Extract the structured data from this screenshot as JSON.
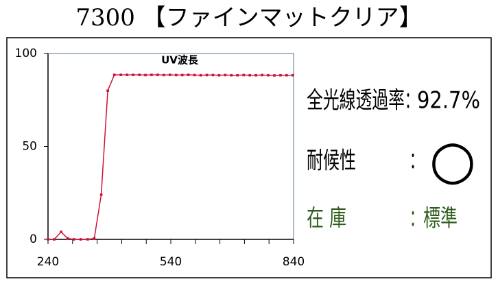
{
  "title": "7300 【ファインマットクリア】",
  "chart_data": {
    "type": "line",
    "title": "UV波長",
    "x": [
      240,
      255,
      272,
      288,
      303,
      320,
      337,
      353,
      370,
      386,
      402,
      418,
      433,
      448,
      463,
      478,
      493,
      508,
      523,
      538,
      553,
      568,
      583,
      598,
      613,
      628,
      643,
      658,
      673,
      688,
      703,
      718,
      733,
      748,
      763,
      778,
      793,
      808,
      823,
      838
    ],
    "series": [
      {
        "name": "UV波長",
        "color": "#d0103a",
        "values": [
          0,
          0,
          4,
          0.5,
          0,
          0,
          0,
          0.5,
          24,
          80,
          88.5,
          88.5,
          88.5,
          88.5,
          88.5,
          88.4,
          88.5,
          88.5,
          88.4,
          88.5,
          88.4,
          88.4,
          88.5,
          88.4,
          88.3,
          88.4,
          88.4,
          88.3,
          88.4,
          88.3,
          88.3,
          88.4,
          88.3,
          88.3,
          88.4,
          88.3,
          88.2,
          88.3,
          88.3,
          88.3
        ]
      }
    ],
    "xlim": [
      240,
      840
    ],
    "xticks": [
      240,
      540,
      840
    ],
    "xminorticks": [
      300,
      360,
      420,
      480,
      600,
      660,
      720,
      780
    ],
    "ylim": [
      0,
      100
    ],
    "yticks": [
      0,
      50,
      100
    ]
  },
  "info": {
    "rows": [
      {
        "label": "全光線透過率",
        "sep": "：",
        "value": "92.7%",
        "color": "#000000"
      },
      {
        "label": "耐候性",
        "sep": "：",
        "value": "○",
        "color": "#000000"
      },
      {
        "label": "在 庫",
        "sep": "：",
        "value": "標準",
        "color": "#2e5d1c"
      }
    ]
  }
}
